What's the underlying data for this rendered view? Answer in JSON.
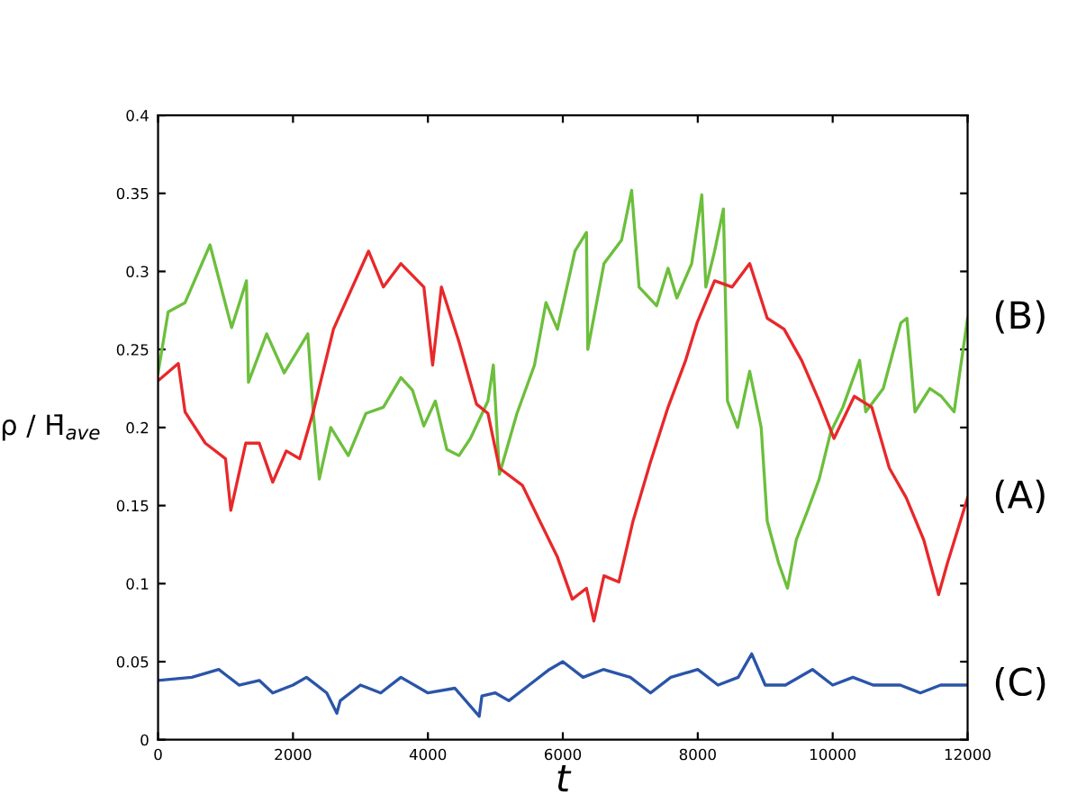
{
  "chart_data": {
    "type": "line",
    "xlabel": "t",
    "ylabel": "ρ / H̄$_{ave}$",
    "xlim": [
      0,
      12000
    ],
    "xticks": [
      0,
      2000,
      4000,
      6000,
      8000,
      10000,
      12000
    ],
    "ylim": [
      0,
      0.4
    ],
    "yticks": [
      0,
      0.05,
      0.1,
      0.15,
      0.2,
      0.25,
      0.3,
      0.35,
      0.4
    ],
    "grid": false,
    "legend": false,
    "marker": "none",
    "line_style": "solid",
    "series": [
      {
        "name": "(B)",
        "color": "#6cbf3c",
        "x": [
          0,
          150,
          400,
          770,
          1090,
          1310,
          1340,
          1610,
          1870,
          2220,
          2300,
          2390,
          2560,
          2820,
          3080,
          3340,
          3600,
          3770,
          3940,
          4110,
          4280,
          4460,
          4630,
          4890,
          4970,
          5060,
          5320,
          5580,
          5750,
          5920,
          6180,
          6350,
          6370,
          6610,
          6870,
          7020,
          7130,
          7390,
          7560,
          7690,
          7910,
          8060,
          8120,
          8250,
          8380,
          8420,
          8440,
          8590,
          8770,
          8940,
          9030,
          9200,
          9330,
          9460,
          9630,
          9800,
          9970,
          10150,
          10400,
          10490,
          10750,
          11010,
          11100,
          11220,
          11440,
          11610,
          11800,
          12000
        ],
        "values": [
          0.235,
          0.274,
          0.28,
          0.317,
          0.264,
          0.294,
          0.229,
          0.26,
          0.235,
          0.26,
          0.21,
          0.167,
          0.2,
          0.182,
          0.209,
          0.213,
          0.232,
          0.224,
          0.201,
          0.217,
          0.186,
          0.182,
          0.193,
          0.217,
          0.24,
          0.17,
          0.209,
          0.24,
          0.28,
          0.263,
          0.313,
          0.325,
          0.25,
          0.305,
          0.32,
          0.352,
          0.29,
          0.278,
          0.302,
          0.283,
          0.305,
          0.349,
          0.29,
          0.313,
          0.34,
          0.263,
          0.217,
          0.2,
          0.236,
          0.2,
          0.14,
          0.113,
          0.097,
          0.128,
          0.147,
          0.167,
          0.197,
          0.213,
          0.243,
          0.21,
          0.225,
          0.267,
          0.27,
          0.21,
          0.225,
          0.22,
          0.21,
          0.27
        ]
      },
      {
        "name": "(A)",
        "color": "#e8282a",
        "x": [
          0,
          300,
          400,
          700,
          1000,
          1078,
          1300,
          1500,
          1700,
          1900,
          2100,
          2300,
          2600,
          3120,
          3340,
          3600,
          3940,
          4070,
          4200,
          4460,
          4720,
          4890,
          5060,
          5400,
          5660,
          5920,
          6140,
          6350,
          6460,
          6610,
          6830,
          7040,
          7300,
          7560,
          7820,
          7990,
          8250,
          8510,
          8770,
          9030,
          9280,
          9540,
          9800,
          10020,
          10320,
          10580,
          10840,
          11090,
          11350,
          11570,
          11700,
          12000
        ],
        "values": [
          0.23,
          0.241,
          0.21,
          0.19,
          0.18,
          0.147,
          0.19,
          0.19,
          0.165,
          0.185,
          0.18,
          0.21,
          0.263,
          0.313,
          0.29,
          0.305,
          0.29,
          0.24,
          0.29,
          0.255,
          0.215,
          0.209,
          0.174,
          0.163,
          0.14,
          0.117,
          0.09,
          0.097,
          0.076,
          0.105,
          0.101,
          0.14,
          0.178,
          0.213,
          0.243,
          0.267,
          0.294,
          0.29,
          0.305,
          0.27,
          0.263,
          0.243,
          0.217,
          0.193,
          0.22,
          0.213,
          0.174,
          0.155,
          0.128,
          0.093,
          0.113,
          0.155
        ]
      },
      {
        "name": "(C)",
        "color": "#2a55a8",
        "x": [
          0,
          500,
          900,
          1200,
          1500,
          1700,
          2000,
          2200,
          2500,
          2650,
          2700,
          3000,
          3300,
          3600,
          4000,
          4400,
          4760,
          4800,
          5000,
          5200,
          5500,
          5800,
          6000,
          6300,
          6600,
          7000,
          7300,
          7600,
          8000,
          8300,
          8600,
          8800,
          9000,
          9300,
          9700,
          10000,
          10300,
          10600,
          11000,
          11300,
          11600,
          12000
        ],
        "values": [
          0.038,
          0.04,
          0.045,
          0.035,
          0.038,
          0.03,
          0.035,
          0.04,
          0.03,
          0.017,
          0.025,
          0.035,
          0.03,
          0.04,
          0.03,
          0.033,
          0.015,
          0.028,
          0.03,
          0.025,
          0.035,
          0.045,
          0.05,
          0.04,
          0.045,
          0.04,
          0.03,
          0.04,
          0.045,
          0.035,
          0.04,
          0.055,
          0.035,
          0.035,
          0.045,
          0.035,
          0.04,
          0.035,
          0.035,
          0.03,
          0.035,
          0.035
        ]
      }
    ]
  }
}
